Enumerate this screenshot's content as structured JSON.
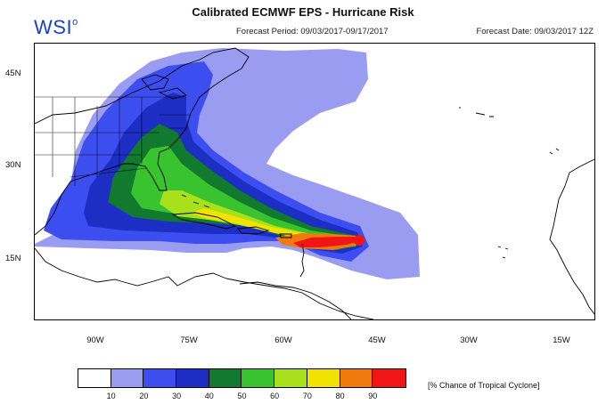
{
  "header": {
    "title": "Calibrated ECMWF EPS - Hurricane Risk",
    "logo_text": "WSI",
    "logo_mark": "o",
    "forecast_period": "Forecast Period: 09/03/2017-09/17/2017",
    "forecast_date": "Forecast Date: 09/03/2017 12Z"
  },
  "axes": {
    "lat_labels": [
      "45N",
      "30N",
      "15N"
    ],
    "lon_labels": [
      "90W",
      "75W",
      "60W",
      "45W",
      "30W",
      "15W"
    ]
  },
  "legend": {
    "caption": "[% Chance of Tropical Cyclone]",
    "tick_labels": [
      "10",
      "20",
      "30",
      "40",
      "50",
      "60",
      "70",
      "80",
      "90"
    ],
    "colors": [
      "#ffffff",
      "#9a9cf2",
      "#3d4ef0",
      "#1c2ec4",
      "#117a2e",
      "#39c42f",
      "#a8e01c",
      "#f2e200",
      "#f27a0c",
      "#f01616"
    ]
  },
  "colors": {
    "logo": "#1a3fd6",
    "coast": "#000000"
  }
}
